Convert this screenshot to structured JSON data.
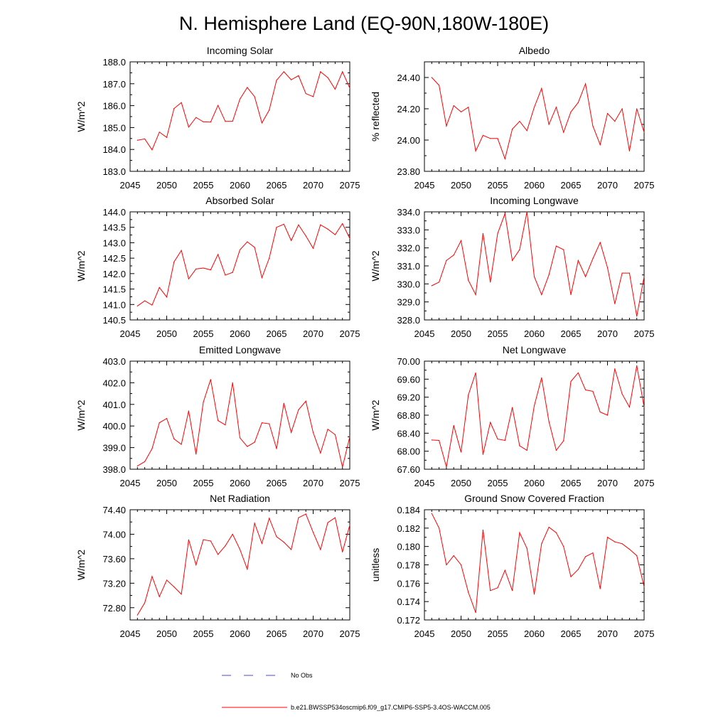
{
  "figure": {
    "title": "N. Hemisphere Land (EQ-90N,180W-180E)",
    "line_color": "#ff0000",
    "obs_color": "#4a4ad0"
  },
  "legend": {
    "obs_label": "No Obs",
    "model_label": "b.e21.BWSSP534oscmip6.f09_g17.CMIP6-SSP5-3.4OS-WACCM.005"
  },
  "chart_data": [
    {
      "type": "line",
      "title": "Incoming Solar",
      "ylabel": "W/m^2",
      "xlim": [
        2045,
        2075
      ],
      "ylim": [
        183.0,
        188.0
      ],
      "xticks": [
        "2045",
        "2050",
        "2055",
        "2060",
        "2065",
        "2070",
        "2075"
      ],
      "yticks": [
        "183.0",
        "184.0",
        "185.0",
        "186.0",
        "187.0",
        "188.0"
      ],
      "x": [
        2046,
        2047,
        2048,
        2049,
        2050,
        2051,
        2052,
        2053,
        2054,
        2055,
        2056,
        2057,
        2058,
        2059,
        2060,
        2061,
        2062,
        2063,
        2064,
        2065,
        2066,
        2067,
        2068,
        2069,
        2070,
        2071,
        2072,
        2073,
        2074,
        2075
      ],
      "values": [
        184.42,
        184.48,
        183.98,
        184.79,
        184.55,
        185.87,
        186.14,
        185.02,
        185.46,
        185.26,
        185.25,
        186.01,
        185.28,
        185.29,
        186.3,
        186.83,
        186.41,
        185.21,
        185.8,
        187.16,
        187.55,
        187.18,
        187.37,
        186.55,
        186.41,
        187.55,
        187.28,
        186.75,
        187.55,
        186.8
      ]
    },
    {
      "type": "line",
      "title": "Albedo",
      "ylabel": "% reflected",
      "xlim": [
        2045,
        2075
      ],
      "ylim": [
        23.8,
        24.5
      ],
      "xticks": [
        "2045",
        "2050",
        "2055",
        "2060",
        "2065",
        "2070",
        "2075"
      ],
      "yticks": [
        "23.80",
        "24.00",
        "24.20",
        "24.40"
      ],
      "x": [
        2046,
        2047,
        2048,
        2049,
        2050,
        2051,
        2052,
        2053,
        2054,
        2055,
        2056,
        2057,
        2058,
        2059,
        2060,
        2061,
        2062,
        2063,
        2064,
        2065,
        2066,
        2067,
        2068,
        2069,
        2070,
        2071,
        2072,
        2073,
        2074,
        2075
      ],
      "values": [
        24.4,
        24.35,
        24.09,
        24.22,
        24.18,
        24.21,
        23.93,
        24.03,
        24.01,
        24.01,
        23.88,
        24.07,
        24.12,
        24.06,
        24.21,
        24.33,
        24.1,
        24.21,
        24.05,
        24.18,
        24.24,
        24.36,
        24.09,
        23.97,
        24.17,
        24.12,
        24.2,
        23.93,
        24.2,
        24.05
      ]
    },
    {
      "type": "line",
      "title": "Absorbed Solar",
      "ylabel": "W/m^2",
      "xlim": [
        2045,
        2075
      ],
      "ylim": [
        140.5,
        144.0
      ],
      "xticks": [
        "2045",
        "2050",
        "2055",
        "2060",
        "2065",
        "2070",
        "2075"
      ],
      "yticks": [
        "140.5",
        "141.0",
        "141.5",
        "142.0",
        "142.5",
        "143.0",
        "143.5",
        "144.0"
      ],
      "x": [
        2046,
        2047,
        2048,
        2049,
        2050,
        2051,
        2052,
        2053,
        2054,
        2055,
        2056,
        2057,
        2058,
        2059,
        2060,
        2061,
        2062,
        2063,
        2064,
        2065,
        2066,
        2067,
        2068,
        2069,
        2070,
        2071,
        2072,
        2073,
        2074,
        2075
      ],
      "values": [
        140.95,
        141.12,
        140.98,
        141.55,
        141.24,
        142.38,
        142.75,
        141.83,
        142.15,
        142.18,
        142.12,
        142.62,
        141.95,
        142.04,
        142.77,
        143.03,
        142.85,
        141.87,
        142.5,
        143.5,
        143.6,
        143.07,
        143.58,
        143.22,
        142.82,
        143.58,
        143.44,
        143.26,
        143.62,
        143.14
      ]
    },
    {
      "type": "line",
      "title": "Incoming Longwave",
      "ylabel": "W/m^2",
      "xlim": [
        2045,
        2075
      ],
      "ylim": [
        328.0,
        334.0
      ],
      "xticks": [
        "2045",
        "2050",
        "2055",
        "2060",
        "2065",
        "2070",
        "2075"
      ],
      "yticks": [
        "328.0",
        "329.0",
        "330.0",
        "331.0",
        "332.0",
        "333.0",
        "334.0"
      ],
      "x": [
        2046,
        2047,
        2048,
        2049,
        2050,
        2051,
        2052,
        2053,
        2054,
        2055,
        2056,
        2057,
        2058,
        2059,
        2060,
        2061,
        2062,
        2063,
        2064,
        2065,
        2066,
        2067,
        2068,
        2069,
        2070,
        2071,
        2072,
        2073,
        2074,
        2075
      ],
      "values": [
        329.9,
        330.1,
        331.3,
        331.6,
        332.4,
        330.2,
        329.4,
        332.8,
        330.1,
        332.8,
        333.9,
        331.3,
        331.9,
        334.0,
        330.4,
        329.4,
        330.5,
        332.1,
        331.9,
        329.4,
        331.3,
        330.4,
        331.4,
        332.3,
        330.9,
        328.9,
        330.6,
        330.6,
        328.2,
        330.4
      ]
    },
    {
      "type": "line",
      "title": "Emitted Longwave",
      "ylabel": "W/m^2",
      "xlim": [
        2045,
        2075
      ],
      "ylim": [
        398.0,
        403.0
      ],
      "xticks": [
        "2045",
        "2050",
        "2055",
        "2060",
        "2065",
        "2070",
        "2075"
      ],
      "yticks": [
        "398.0",
        "399.0",
        "400.0",
        "401.0",
        "402.0",
        "403.0"
      ],
      "x": [
        2046,
        2047,
        2048,
        2049,
        2050,
        2051,
        2052,
        2053,
        2054,
        2055,
        2056,
        2057,
        2058,
        2059,
        2060,
        2061,
        2062,
        2063,
        2064,
        2065,
        2066,
        2067,
        2068,
        2069,
        2070,
        2071,
        2072,
        2073,
        2074,
        2075
      ],
      "values": [
        398.15,
        398.35,
        398.95,
        400.15,
        400.35,
        399.4,
        399.15,
        400.7,
        398.7,
        401.1,
        402.15,
        400.25,
        400.05,
        402.0,
        399.45,
        399.05,
        399.25,
        400.15,
        400.1,
        398.95,
        401.05,
        399.7,
        400.75,
        401.15,
        399.7,
        398.75,
        399.85,
        399.6,
        398.1,
        399.5
      ]
    },
    {
      "type": "line",
      "title": "Net Longwave",
      "ylabel": "W/m^2",
      "xlim": [
        2045,
        2075
      ],
      "ylim": [
        67.6,
        70.0
      ],
      "xticks": [
        "2045",
        "2050",
        "2055",
        "2060",
        "2065",
        "2070",
        "2075"
      ],
      "yticks": [
        "67.60",
        "68.00",
        "68.40",
        "68.80",
        "69.20",
        "69.60",
        "70.00"
      ],
      "x": [
        2046,
        2047,
        2048,
        2049,
        2050,
        2051,
        2052,
        2053,
        2054,
        2055,
        2056,
        2057,
        2058,
        2059,
        2060,
        2061,
        2062,
        2063,
        2064,
        2065,
        2066,
        2067,
        2068,
        2069,
        2070,
        2071,
        2072,
        2073,
        2074,
        2075
      ],
      "values": [
        68.25,
        68.24,
        67.65,
        68.57,
        67.98,
        69.25,
        69.74,
        67.93,
        68.64,
        68.27,
        68.24,
        68.97,
        68.12,
        68.02,
        69.01,
        69.63,
        68.66,
        68.02,
        68.23,
        69.55,
        69.74,
        69.36,
        69.33,
        68.87,
        68.8,
        69.83,
        69.27,
        68.98,
        69.9,
        68.98
      ]
    },
    {
      "type": "line",
      "title": "Net Radiation",
      "ylabel": "W/m^2",
      "xlim": [
        2045,
        2075
      ],
      "ylim": [
        72.6,
        74.4
      ],
      "xticks": [
        "2045",
        "2050",
        "2055",
        "2060",
        "2065",
        "2070",
        "2075"
      ],
      "yticks": [
        "72.80",
        "73.20",
        "73.60",
        "74.00",
        "74.40"
      ],
      "x": [
        2046,
        2047,
        2048,
        2049,
        2050,
        2051,
        2052,
        2053,
        2054,
        2055,
        2056,
        2057,
        2058,
        2059,
        2060,
        2061,
        2062,
        2063,
        2064,
        2065,
        2066,
        2067,
        2068,
        2069,
        2070,
        2071,
        2072,
        2073,
        2074,
        2075
      ],
      "values": [
        72.68,
        72.88,
        73.31,
        72.98,
        73.25,
        73.14,
        73.02,
        73.91,
        73.5,
        73.91,
        73.89,
        73.67,
        73.81,
        74.0,
        73.75,
        73.43,
        74.18,
        73.85,
        74.26,
        73.96,
        73.87,
        73.75,
        74.27,
        74.33,
        74.03,
        73.75,
        74.19,
        74.27,
        73.71,
        74.15
      ]
    },
    {
      "type": "line",
      "title": "Ground Snow Covered Fraction",
      "ylabel": "unitless",
      "xlim": [
        2045,
        2075
      ],
      "ylim": [
        0.172,
        0.184
      ],
      "xticks": [
        "2045",
        "2050",
        "2055",
        "2060",
        "2065",
        "2070",
        "2075"
      ],
      "yticks": [
        "0.172",
        "0.174",
        "0.176",
        "0.178",
        "0.180",
        "0.182",
        "0.184"
      ],
      "x": [
        2046,
        2047,
        2048,
        2049,
        2050,
        2051,
        2052,
        2053,
        2054,
        2055,
        2056,
        2057,
        2058,
        2059,
        2060,
        2061,
        2062,
        2063,
        2064,
        2065,
        2066,
        2067,
        2068,
        2069,
        2070,
        2071,
        2072,
        2073,
        2074,
        2075
      ],
      "values": [
        0.1836,
        0.182,
        0.178,
        0.179,
        0.178,
        0.175,
        0.1728,
        0.1818,
        0.1752,
        0.1755,
        0.1774,
        0.1752,
        0.1815,
        0.1798,
        0.1748,
        0.1803,
        0.1821,
        0.1815,
        0.18,
        0.1767,
        0.1775,
        0.1789,
        0.1793,
        0.1754,
        0.181,
        0.1805,
        0.1803,
        0.1797,
        0.179,
        0.1756
      ]
    }
  ]
}
